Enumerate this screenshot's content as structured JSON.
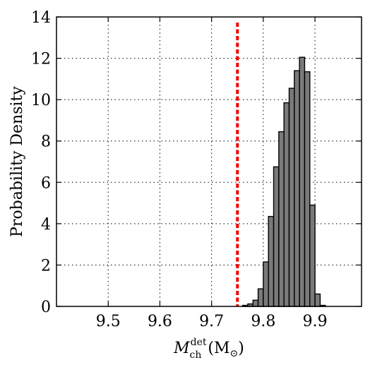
{
  "chart_data": {
    "type": "bar",
    "title": "",
    "xlabel": {
      "base": "M",
      "superscript": "det",
      "subscript": "ch",
      "unit": "(M",
      "unit_sub": "⊙",
      "unit_close": ")"
    },
    "ylabel": "Probability Density",
    "xlim": [
      9.4,
      9.99
    ],
    "ylim": [
      0,
      14
    ],
    "x_ticks": [
      {
        "value": 9.5,
        "label": "9.5"
      },
      {
        "value": 9.6,
        "label": "9.6"
      },
      {
        "value": 9.7,
        "label": "9.7"
      },
      {
        "value": 9.8,
        "label": "9.8"
      },
      {
        "value": 9.9,
        "label": "9.9"
      }
    ],
    "y_ticks": [
      {
        "value": 0,
        "label": "0"
      },
      {
        "value": 2,
        "label": "2"
      },
      {
        "value": 4,
        "label": "4"
      },
      {
        "value": 6,
        "label": "6"
      },
      {
        "value": 8,
        "label": "8"
      },
      {
        "value": 10,
        "label": "10"
      },
      {
        "value": 12,
        "label": "12"
      },
      {
        "value": 14,
        "label": "14"
      }
    ],
    "grid": true,
    "bin_width": 0.01,
    "bins": [
      {
        "x0": 9.76,
        "density": 0.05
      },
      {
        "x0": 9.77,
        "density": 0.12
      },
      {
        "x0": 9.78,
        "density": 0.3
      },
      {
        "x0": 9.79,
        "density": 0.85
      },
      {
        "x0": 9.8,
        "density": 2.15
      },
      {
        "x0": 9.81,
        "density": 4.35
      },
      {
        "x0": 9.82,
        "density": 6.75
      },
      {
        "x0": 9.83,
        "density": 8.45
      },
      {
        "x0": 9.84,
        "density": 9.85
      },
      {
        "x0": 9.85,
        "density": 10.55
      },
      {
        "x0": 9.86,
        "density": 11.4
      },
      {
        "x0": 9.87,
        "density": 12.05
      },
      {
        "x0": 9.88,
        "density": 11.35
      },
      {
        "x0": 9.89,
        "density": 4.9
      },
      {
        "x0": 9.9,
        "density": 0.6
      },
      {
        "x0": 9.91,
        "density": 0.05
      }
    ],
    "reference_line": {
      "x": 9.75,
      "color": "#ee0000",
      "style": "dashed"
    },
    "bar_color": "#7a7a7a"
  }
}
